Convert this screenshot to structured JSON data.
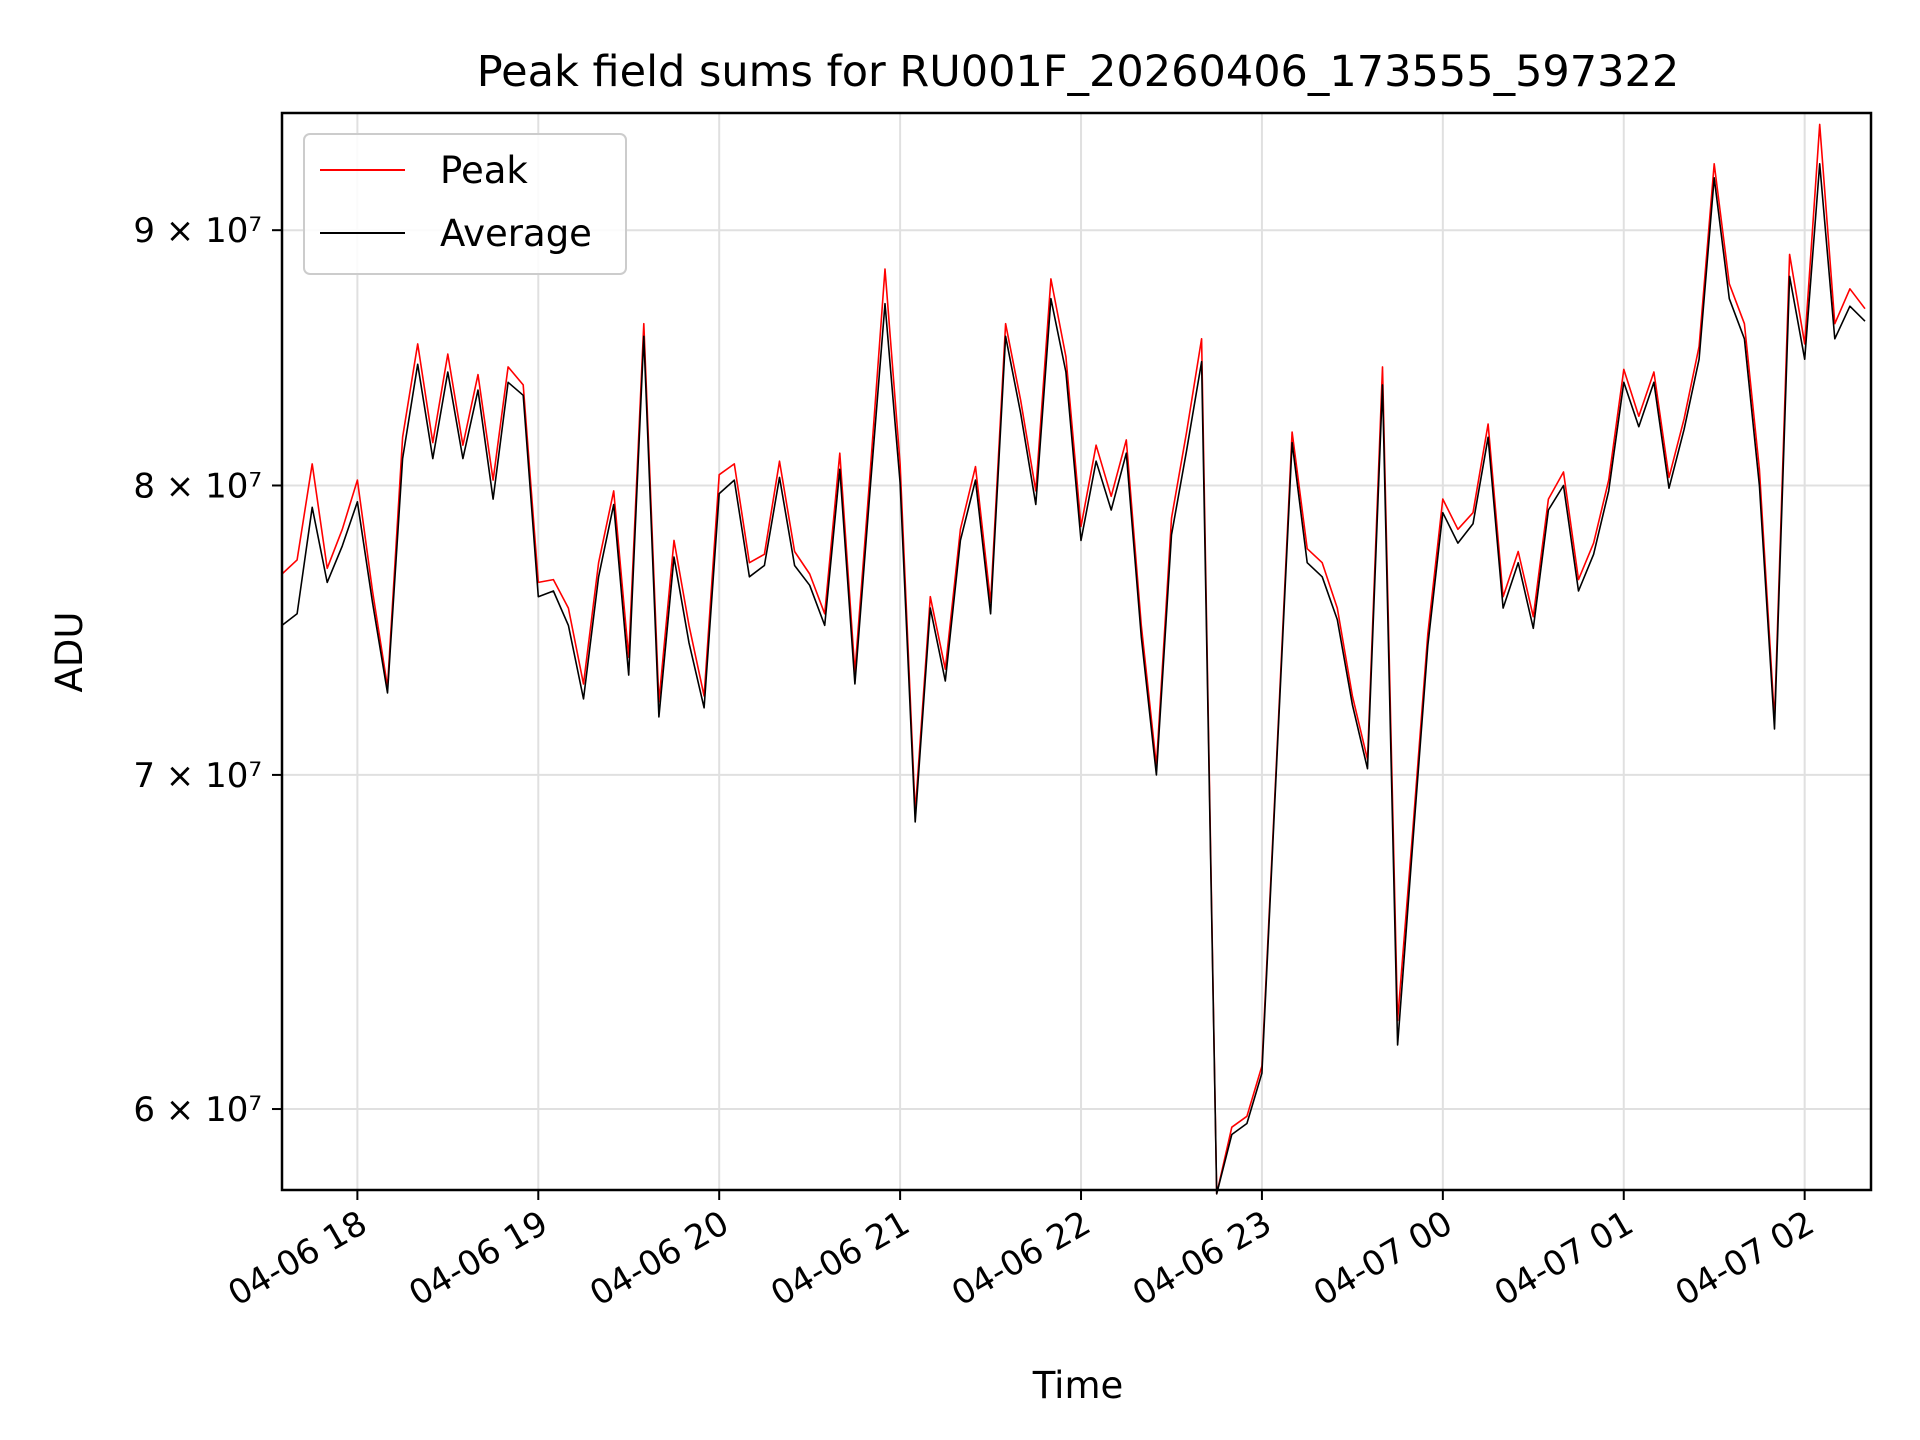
{
  "chart_data": {
    "type": "line",
    "title": "Peak field sums for RU001F_20260406_173555_597322",
    "xlabel": "Time",
    "ylabel": "ADU",
    "yscale": "log",
    "grid": true,
    "legend_position": "top-left",
    "xlim": [
      "2026-04-06 17:35",
      "2026-04-07 02:22"
    ],
    "ylim": [
      57800000,
      95000000
    ],
    "x_ticks": [
      "04-06 18",
      "04-06 19",
      "04-06 20",
      "04-06 21",
      "04-06 22",
      "04-06 23",
      "04-07 00",
      "04-07 01",
      "04-07 02"
    ],
    "y_ticks": [
      {
        "value": 60000000,
        "label": "6 × 10⁷"
      },
      {
        "value": 70000000,
        "label": "7 × 10⁷"
      },
      {
        "value": 80000000,
        "label": "8 × 10⁷"
      },
      {
        "value": 90000000,
        "label": "9 × 10⁷"
      }
    ],
    "series": [
      {
        "name": "Peak",
        "color": "#ff0000",
        "x": [
          "2026-04-06 17:35",
          "2026-04-06 17:40",
          "2026-04-06 17:45",
          "2026-04-06 17:50",
          "2026-04-06 17:55",
          "2026-04-06 18:00",
          "2026-04-06 18:05",
          "2026-04-06 18:10",
          "2026-04-06 18:15",
          "2026-04-06 18:20",
          "2026-04-06 18:25",
          "2026-04-06 18:30",
          "2026-04-06 18:35",
          "2026-04-06 18:40",
          "2026-04-06 18:45",
          "2026-04-06 18:50",
          "2026-04-06 18:55",
          "2026-04-06 19:00",
          "2026-04-06 19:05",
          "2026-04-06 19:10",
          "2026-04-06 19:15",
          "2026-04-06 19:20",
          "2026-04-06 19:25",
          "2026-04-06 19:30",
          "2026-04-06 19:35",
          "2026-04-06 19:40",
          "2026-04-06 19:45",
          "2026-04-06 19:50",
          "2026-04-06 19:55",
          "2026-04-06 20:00",
          "2026-04-06 20:05",
          "2026-04-06 20:10",
          "2026-04-06 20:15",
          "2026-04-06 20:20",
          "2026-04-06 20:25",
          "2026-04-06 20:30",
          "2026-04-06 20:35",
          "2026-04-06 20:40",
          "2026-04-06 20:45",
          "2026-04-06 20:50",
          "2026-04-06 20:55",
          "2026-04-06 21:00",
          "2026-04-06 21:05",
          "2026-04-06 21:10",
          "2026-04-06 21:15",
          "2026-04-06 21:20",
          "2026-04-06 21:25",
          "2026-04-06 21:30",
          "2026-04-06 21:35",
          "2026-04-06 21:40",
          "2026-04-06 21:45",
          "2026-04-06 21:50",
          "2026-04-06 21:55",
          "2026-04-06 22:00",
          "2026-04-06 22:05",
          "2026-04-06 22:10",
          "2026-04-06 22:15",
          "2026-04-06 22:20",
          "2026-04-06 22:25",
          "2026-04-06 22:30",
          "2026-04-06 22:35",
          "2026-04-06 22:40",
          "2026-04-06 22:45",
          "2026-04-06 22:50",
          "2026-04-06 22:55",
          "2026-04-06 23:00",
          "2026-04-06 23:05",
          "2026-04-06 23:10",
          "2026-04-06 23:15",
          "2026-04-06 23:20",
          "2026-04-06 23:25",
          "2026-04-06 23:30",
          "2026-04-06 23:35",
          "2026-04-06 23:40",
          "2026-04-06 23:45",
          "2026-04-06 23:50",
          "2026-04-06 23:55",
          "2026-04-07 00:00",
          "2026-04-07 00:05",
          "2026-04-07 00:10",
          "2026-04-07 00:15",
          "2026-04-07 00:20",
          "2026-04-07 00:25",
          "2026-04-07 00:30",
          "2026-04-07 00:35",
          "2026-04-07 00:40",
          "2026-04-07 00:45",
          "2026-04-07 00:50",
          "2026-04-07 00:55",
          "2026-04-07 01:00",
          "2026-04-07 01:05",
          "2026-04-07 01:10",
          "2026-04-07 01:15",
          "2026-04-07 01:20",
          "2026-04-07 01:25",
          "2026-04-07 01:30",
          "2026-04-07 01:35",
          "2026-04-07 01:40",
          "2026-04-07 01:45",
          "2026-04-07 01:50",
          "2026-04-07 01:55",
          "2026-04-07 02:00",
          "2026-04-07 02:05",
          "2026-04-07 02:10",
          "2026-04-07 02:15",
          "2026-04-07 02:20"
        ],
        "values": [
          76800000,
          77300000,
          80800000,
          77000000,
          78400000,
          80200000,
          76200000,
          72900000,
          81800000,
          85400000,
          81600000,
          85000000,
          81500000,
          84200000,
          80200000,
          84500000,
          83800000,
          76500000,
          76600000,
          75600000,
          73000000,
          77200000,
          79800000,
          73900000,
          86200000,
          72400000,
          78000000,
          75000000,
          72600000,
          80400000,
          80800000,
          77200000,
          77500000,
          80900000,
          77600000,
          76800000,
          75400000,
          81200000,
          73400000,
          80400000,
          88400000,
          80800000,
          68800000,
          76000000,
          73500000,
          78400000,
          80700000,
          75800000,
          86200000,
          83200000,
          79800000,
          88000000,
          84900000,
          78500000,
          81500000,
          79600000,
          81700000,
          75000000,
          70300000,
          78800000,
          82000000,
          85600000,
          57700000,
          59500000,
          59800000,
          61200000,
          70800000,
          82000000,
          77700000,
          77200000,
          75600000,
          72600000,
          70500000,
          84500000,
          62500000,
          68200000,
          74700000,
          79500000,
          78400000,
          79000000,
          82300000,
          76000000,
          77600000,
          75300000,
          79500000,
          80500000,
          76600000,
          77900000,
          80200000,
          84400000,
          82600000,
          84300000,
          80300000,
          82500000,
          85300000,
          92800000,
          87800000,
          86200000,
          80600000,
          71800000,
          89000000,
          85400000,
          94500000,
          86200000,
          87600000,
          86800000
        ]
      },
      {
        "name": "Average",
        "color": "#000000",
        "x": [
          "2026-04-06 17:35",
          "2026-04-06 17:40",
          "2026-04-06 17:45",
          "2026-04-06 17:50",
          "2026-04-06 17:55",
          "2026-04-06 18:00",
          "2026-04-06 18:05",
          "2026-04-06 18:10",
          "2026-04-06 18:15",
          "2026-04-06 18:20",
          "2026-04-06 18:25",
          "2026-04-06 18:30",
          "2026-04-06 18:35",
          "2026-04-06 18:40",
          "2026-04-06 18:45",
          "2026-04-06 18:50",
          "2026-04-06 18:55",
          "2026-04-06 19:00",
          "2026-04-06 19:05",
          "2026-04-06 19:10",
          "2026-04-06 19:15",
          "2026-04-06 19:20",
          "2026-04-06 19:25",
          "2026-04-06 19:30",
          "2026-04-06 19:35",
          "2026-04-06 19:40",
          "2026-04-06 19:45",
          "2026-04-06 19:50",
          "2026-04-06 19:55",
          "2026-04-06 20:00",
          "2026-04-06 20:05",
          "2026-04-06 20:10",
          "2026-04-06 20:15",
          "2026-04-06 20:20",
          "2026-04-06 20:25",
          "2026-04-06 20:30",
          "2026-04-06 20:35",
          "2026-04-06 20:40",
          "2026-04-06 20:45",
          "2026-04-06 20:50",
          "2026-04-06 20:55",
          "2026-04-06 21:00",
          "2026-04-06 21:05",
          "2026-04-06 21:10",
          "2026-04-06 21:15",
          "2026-04-06 21:20",
          "2026-04-06 21:25",
          "2026-04-06 21:30",
          "2026-04-06 21:35",
          "2026-04-06 21:40",
          "2026-04-06 21:45",
          "2026-04-06 21:50",
          "2026-04-06 21:55",
          "2026-04-06 22:00",
          "2026-04-06 22:05",
          "2026-04-06 22:10",
          "2026-04-06 22:15",
          "2026-04-06 22:20",
          "2026-04-06 22:25",
          "2026-04-06 22:30",
          "2026-04-06 22:35",
          "2026-04-06 22:40",
          "2026-04-06 22:45",
          "2026-04-06 22:50",
          "2026-04-06 22:55",
          "2026-04-06 23:00",
          "2026-04-06 23:05",
          "2026-04-06 23:10",
          "2026-04-06 23:15",
          "2026-04-06 23:20",
          "2026-04-06 23:25",
          "2026-04-06 23:30",
          "2026-04-06 23:35",
          "2026-04-06 23:40",
          "2026-04-06 23:45",
          "2026-04-06 23:50",
          "2026-04-06 23:55",
          "2026-04-07 00:00",
          "2026-04-07 00:05",
          "2026-04-07 00:10",
          "2026-04-07 00:15",
          "2026-04-07 00:20",
          "2026-04-07 00:25",
          "2026-04-07 00:30",
          "2026-04-07 00:35",
          "2026-04-07 00:40",
          "2026-04-07 00:45",
          "2026-04-07 00:50",
          "2026-04-07 00:55",
          "2026-04-07 01:00",
          "2026-04-07 01:05",
          "2026-04-07 01:10",
          "2026-04-07 01:15",
          "2026-04-07 01:20",
          "2026-04-07 01:25",
          "2026-04-07 01:30",
          "2026-04-07 01:35",
          "2026-04-07 01:40",
          "2026-04-07 01:45",
          "2026-04-07 01:50",
          "2026-04-07 01:55",
          "2026-04-07 02:00",
          "2026-04-07 02:05",
          "2026-04-07 02:10",
          "2026-04-07 02:15",
          "2026-04-07 02:20"
        ],
        "values": [
          75000000,
          75400000,
          79200000,
          76500000,
          77800000,
          79400000,
          75800000,
          72700000,
          81000000,
          84600000,
          81000000,
          84300000,
          81000000,
          83600000,
          79500000,
          83900000,
          83400000,
          76000000,
          76200000,
          75000000,
          72500000,
          76700000,
          79300000,
          73300000,
          85700000,
          71900000,
          77400000,
          74400000,
          72200000,
          79700000,
          80200000,
          76700000,
          77100000,
          80300000,
          77100000,
          76400000,
          75000000,
          80600000,
          73000000,
          79800000,
          87000000,
          80100000,
          68500000,
          75600000,
          73100000,
          78000000,
          80200000,
          75400000,
          85700000,
          82700000,
          79300000,
          87200000,
          84300000,
          78000000,
          80900000,
          79100000,
          81200000,
          74600000,
          70000000,
          78200000,
          81300000,
          84700000,
          57700000,
          59300000,
          59600000,
          61000000,
          70600000,
          81600000,
          77200000,
          76700000,
          75200000,
          72300000,
          70200000,
          83800000,
          61800000,
          67800000,
          74300000,
          79000000,
          77900000,
          78600000,
          81800000,
          75600000,
          77200000,
          74900000,
          79100000,
          80000000,
          76200000,
          77500000,
          79800000,
          83900000,
          82200000,
          83900000,
          79900000,
          82100000,
          84800000,
          92200000,
          87200000,
          85600000,
          80000000,
          71500000,
          88100000,
          84800000,
          92800000,
          85600000,
          86900000,
          86300000
        ]
      }
    ]
  }
}
